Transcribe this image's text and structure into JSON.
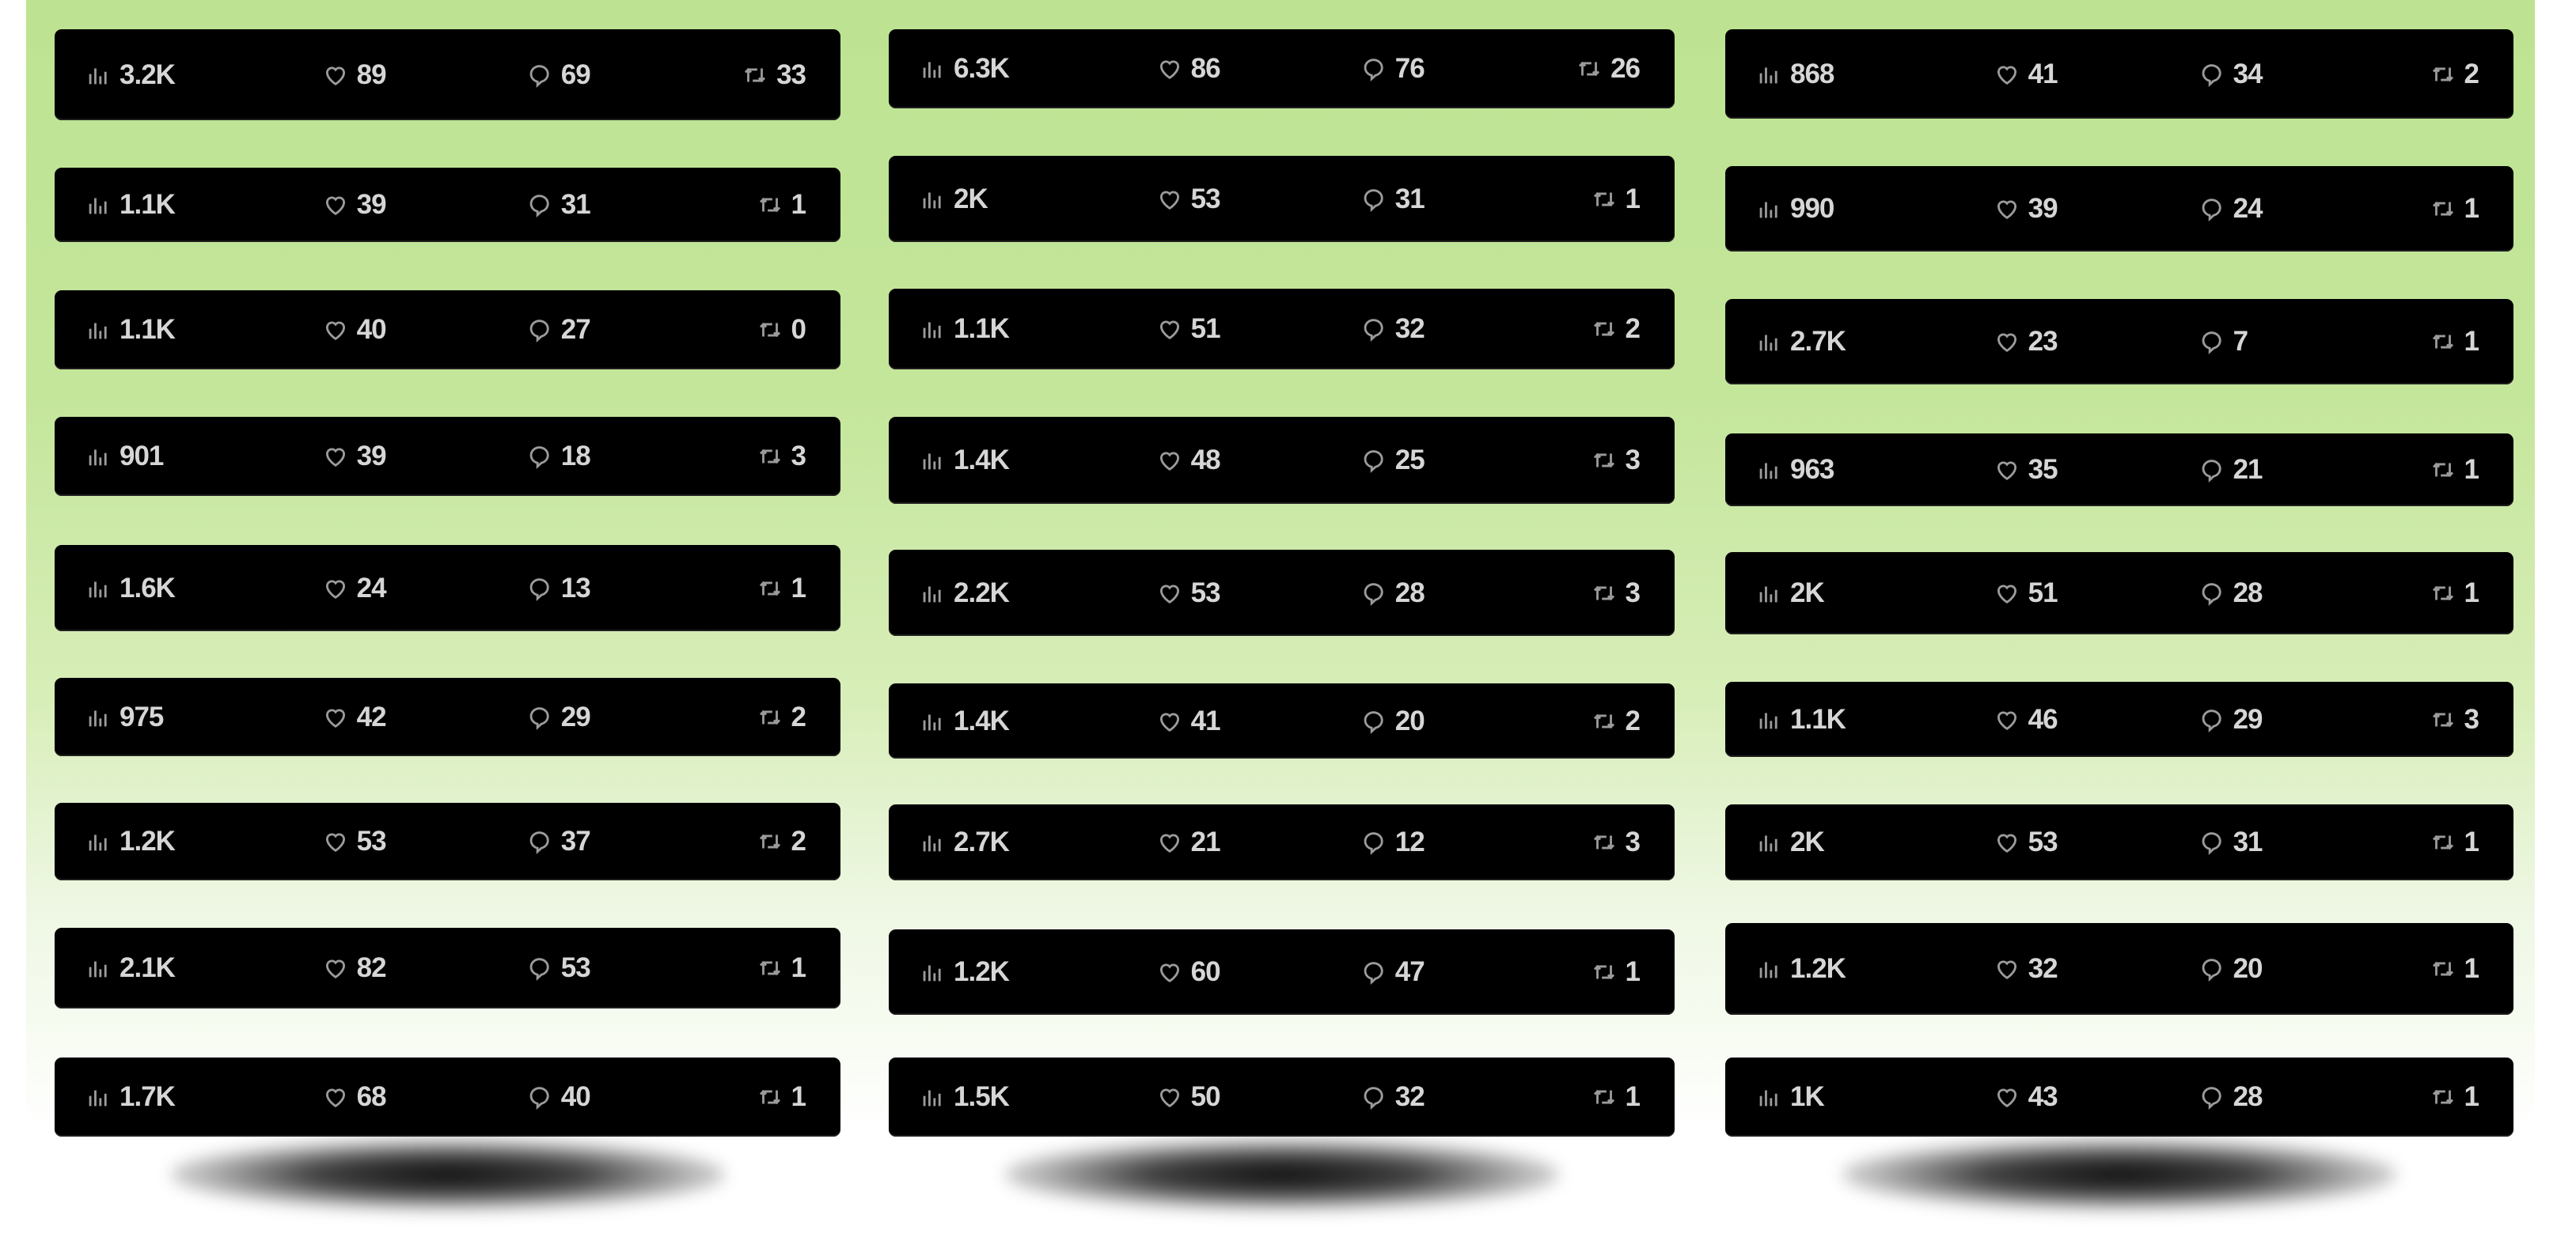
{
  "colors": {
    "background_top": "#bde392",
    "background_bottom": "#f8fcf3",
    "card": "#000000",
    "text": "#d6d6d6",
    "icon": "#9b9b9b"
  },
  "icons": {
    "views": "bar-chart-icon",
    "likes": "heart-icon",
    "comments": "comment-bubble-icon",
    "retweets": "retweet-icon"
  },
  "columns": [
    {
      "cards": [
        {
          "views": "3.2K",
          "likes": "89",
          "comments": "69",
          "retweets": "33"
        },
        {
          "views": "1.1K",
          "likes": "39",
          "comments": "31",
          "retweets": "1"
        },
        {
          "views": "1.1K",
          "likes": "40",
          "comments": "27",
          "retweets": "0"
        },
        {
          "views": "901",
          "likes": "39",
          "comments": "18",
          "retweets": "3"
        },
        {
          "views": "1.6K",
          "likes": "24",
          "comments": "13",
          "retweets": "1"
        },
        {
          "views": "975",
          "likes": "42",
          "comments": "29",
          "retweets": "2"
        },
        {
          "views": "1.2K",
          "likes": "53",
          "comments": "37",
          "retweets": "2"
        },
        {
          "views": "2.1K",
          "likes": "82",
          "comments": "53",
          "retweets": "1"
        },
        {
          "views": "1.7K",
          "likes": "68",
          "comments": "40",
          "retweets": "1"
        }
      ]
    },
    {
      "cards": [
        {
          "views": "6.3K",
          "likes": "86",
          "comments": "76",
          "retweets": "26"
        },
        {
          "views": "2K",
          "likes": "53",
          "comments": "31",
          "retweets": "1"
        },
        {
          "views": "1.1K",
          "likes": "51",
          "comments": "32",
          "retweets": "2"
        },
        {
          "views": "1.4K",
          "likes": "48",
          "comments": "25",
          "retweets": "3"
        },
        {
          "views": "2.2K",
          "likes": "53",
          "comments": "28",
          "retweets": "3"
        },
        {
          "views": "1.4K",
          "likes": "41",
          "comments": "20",
          "retweets": "2"
        },
        {
          "views": "2.7K",
          "likes": "21",
          "comments": "12",
          "retweets": "3"
        },
        {
          "views": "1.2K",
          "likes": "60",
          "comments": "47",
          "retweets": "1"
        },
        {
          "views": "1.5K",
          "likes": "50",
          "comments": "32",
          "retweets": "1"
        }
      ]
    },
    {
      "cards": [
        {
          "views": "868",
          "likes": "41",
          "comments": "34",
          "retweets": "2"
        },
        {
          "views": "990",
          "likes": "39",
          "comments": "24",
          "retweets": "1"
        },
        {
          "views": "2.7K",
          "likes": "23",
          "comments": "7",
          "retweets": "1"
        },
        {
          "views": "963",
          "likes": "35",
          "comments": "21",
          "retweets": "1"
        },
        {
          "views": "2K",
          "likes": "51",
          "comments": "28",
          "retweets": "1"
        },
        {
          "views": "1.1K",
          "likes": "46",
          "comments": "29",
          "retweets": "3"
        },
        {
          "views": "2K",
          "likes": "53",
          "comments": "31",
          "retweets": "1"
        },
        {
          "views": "1.2K",
          "likes": "32",
          "comments": "20",
          "retweets": "1"
        },
        {
          "views": "1K",
          "likes": "43",
          "comments": "28",
          "retweets": "1"
        }
      ]
    }
  ]
}
